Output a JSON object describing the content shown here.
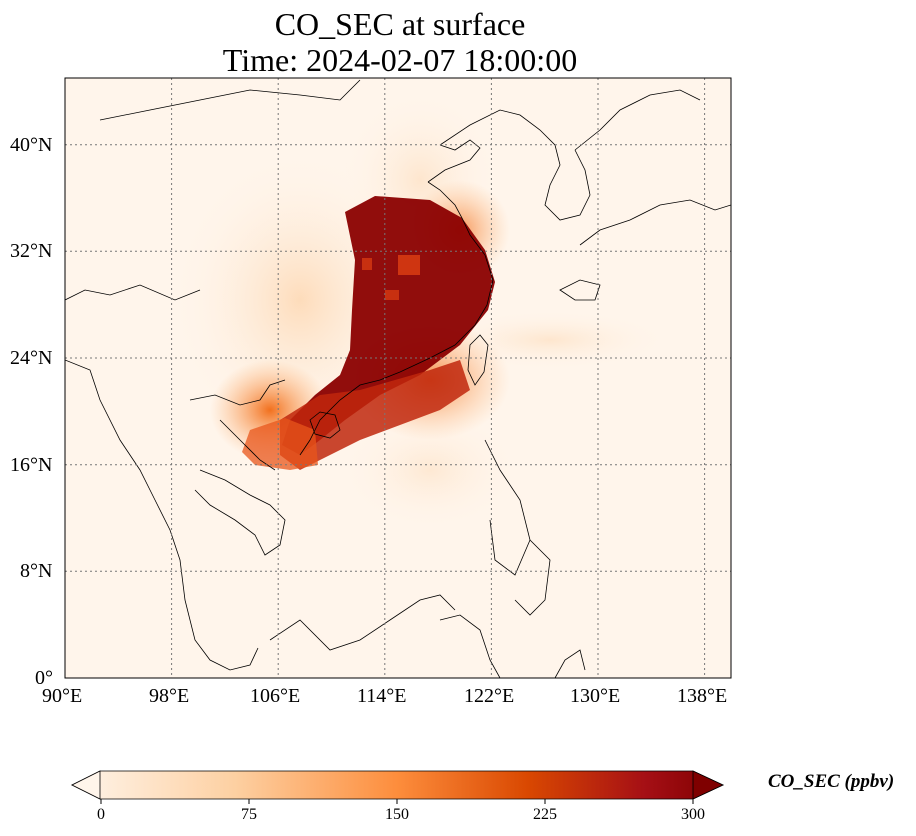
{
  "title": {
    "line1": "CO_SEC at surface",
    "line2": "Time: 2024-02-07 18:00:00"
  },
  "map": {
    "lon_ticks": [
      "90°E",
      "98°E",
      "106°E",
      "114°E",
      "122°E",
      "130°E",
      "138°E"
    ],
    "lat_ticks": [
      "0°",
      "8°N",
      "16°N",
      "24°N",
      "32°N",
      "40°N"
    ],
    "lon_range": [
      90,
      140
    ],
    "lat_range": [
      0,
      45
    ],
    "gridlines": true
  },
  "colorbar": {
    "label": "CO_SEC (ppbv)",
    "ticks": [
      "0",
      "75",
      "150",
      "225",
      "300"
    ],
    "range": [
      0,
      300
    ],
    "extend": "both",
    "colormap": [
      "#fff5eb",
      "#fdd0a2",
      "#fd8d3c",
      "#d94801",
      "#8c2d04",
      "#7f0000"
    ]
  },
  "colors": {
    "background": "#fff5eb",
    "plume_max": "#7f0000",
    "coastline": "#000000",
    "grid": "#777777"
  }
}
